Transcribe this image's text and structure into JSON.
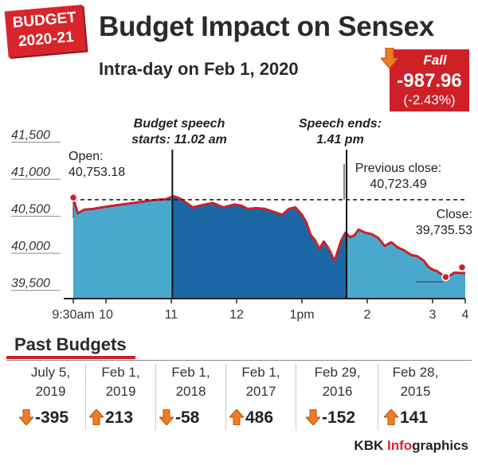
{
  "badge": {
    "line1": "BUDGET",
    "line2": "2020-21"
  },
  "title": "Budget Impact on Sensex",
  "subtitle": "Intra-day on Feb 1, 2020",
  "fall": {
    "label": "Fall",
    "value": "-987.96",
    "percent": "(-2.43%)"
  },
  "colors": {
    "accent_red": "#cf2027",
    "area_light": "#4aa8cf",
    "area_dark": "#1b67a6",
    "line": "#c8232b",
    "up_arrow": "#f07b22",
    "down_arrow": "#f07b22"
  },
  "chart_data": {
    "type": "area",
    "title": "Budget Impact on Sensex",
    "subtitle": "Intra-day on Feb 1, 2020",
    "y_ticks": [
      "41,500",
      "41,000",
      "40,500",
      "40,000",
      "39,500"
    ],
    "y_tick_values": [
      41500,
      41000,
      40500,
      40000,
      39500
    ],
    "ylim": [
      39400,
      41700
    ],
    "x_ticks": [
      "9:30am",
      "10",
      "11",
      "12",
      "1pm",
      "2",
      "3",
      "4"
    ],
    "x_tick_minutes": [
      0,
      30,
      90,
      150,
      210,
      270,
      330,
      360
    ],
    "xlim_minutes": [
      0,
      360
    ],
    "series": [
      {
        "minutes": [
          0,
          4,
          10,
          18,
          26,
          35,
          45,
          55,
          65,
          75,
          85,
          92,
          98,
          103,
          110,
          118,
          128,
          138,
          148,
          155,
          160,
          168,
          176,
          184,
          192,
          198,
          204,
          210,
          214,
          218,
          222,
          226,
          230,
          234,
          240,
          246,
          250,
          254,
          258,
          262,
          268,
          274,
          280,
          286,
          292,
          298,
          304,
          310,
          316,
          322,
          326,
          330,
          334,
          338,
          342,
          346,
          350,
          356,
          360
        ],
        "values": [
          40753,
          40540,
          40590,
          40600,
          40620,
          40640,
          40660,
          40680,
          40700,
          40720,
          40730,
          40770,
          40740,
          40690,
          40620,
          40650,
          40680,
          40620,
          40660,
          40640,
          40600,
          40610,
          40600,
          40560,
          40520,
          40600,
          40620,
          40520,
          40420,
          40250,
          40180,
          40060,
          40160,
          40080,
          39900,
          40170,
          40280,
          40220,
          40240,
          40320,
          40280,
          40260,
          40210,
          40100,
          40150,
          40080,
          40040,
          39980,
          39960,
          39900,
          39820,
          39780,
          39760,
          39720,
          39680,
          39700,
          39740,
          39735,
          39736
        ]
      }
    ],
    "open": {
      "label": "Open:",
      "value": "40,753.18"
    },
    "previous_close": {
      "label": "Previous close:",
      "value": "40,723.49",
      "level": 40723.49
    },
    "close": {
      "label": "Close:",
      "value": "39,735.53"
    },
    "events": [
      {
        "line1": "Budget speech",
        "line2": "starts: 11.02 am",
        "minute": 91
      },
      {
        "line1": "Speech ends:",
        "line2": "1.41 pm",
        "minute": 251
      }
    ],
    "shaded_span_minutes": [
      91,
      251
    ],
    "grid": false,
    "legend": "none"
  },
  "past": {
    "title": "Past Budgets",
    "items": [
      {
        "date1": "July 5,",
        "date2": "2019",
        "change": "-395",
        "dir": "down"
      },
      {
        "date1": "Feb 1,",
        "date2": "2019",
        "change": "213",
        "dir": "up"
      },
      {
        "date1": "Feb 1,",
        "date2": "2018",
        "change": "-58",
        "dir": "down"
      },
      {
        "date1": "Feb 1,",
        "date2": "2017",
        "change": "486",
        "dir": "up"
      },
      {
        "date1": "Feb 29,",
        "date2": "2016",
        "change": "-152",
        "dir": "down"
      },
      {
        "date1": "Feb 28,",
        "date2": "2015",
        "change": "141",
        "dir": "up"
      }
    ]
  },
  "credit": {
    "prefix": "KBK ",
    "highlight": "Info",
    "suffix": "graphics"
  }
}
